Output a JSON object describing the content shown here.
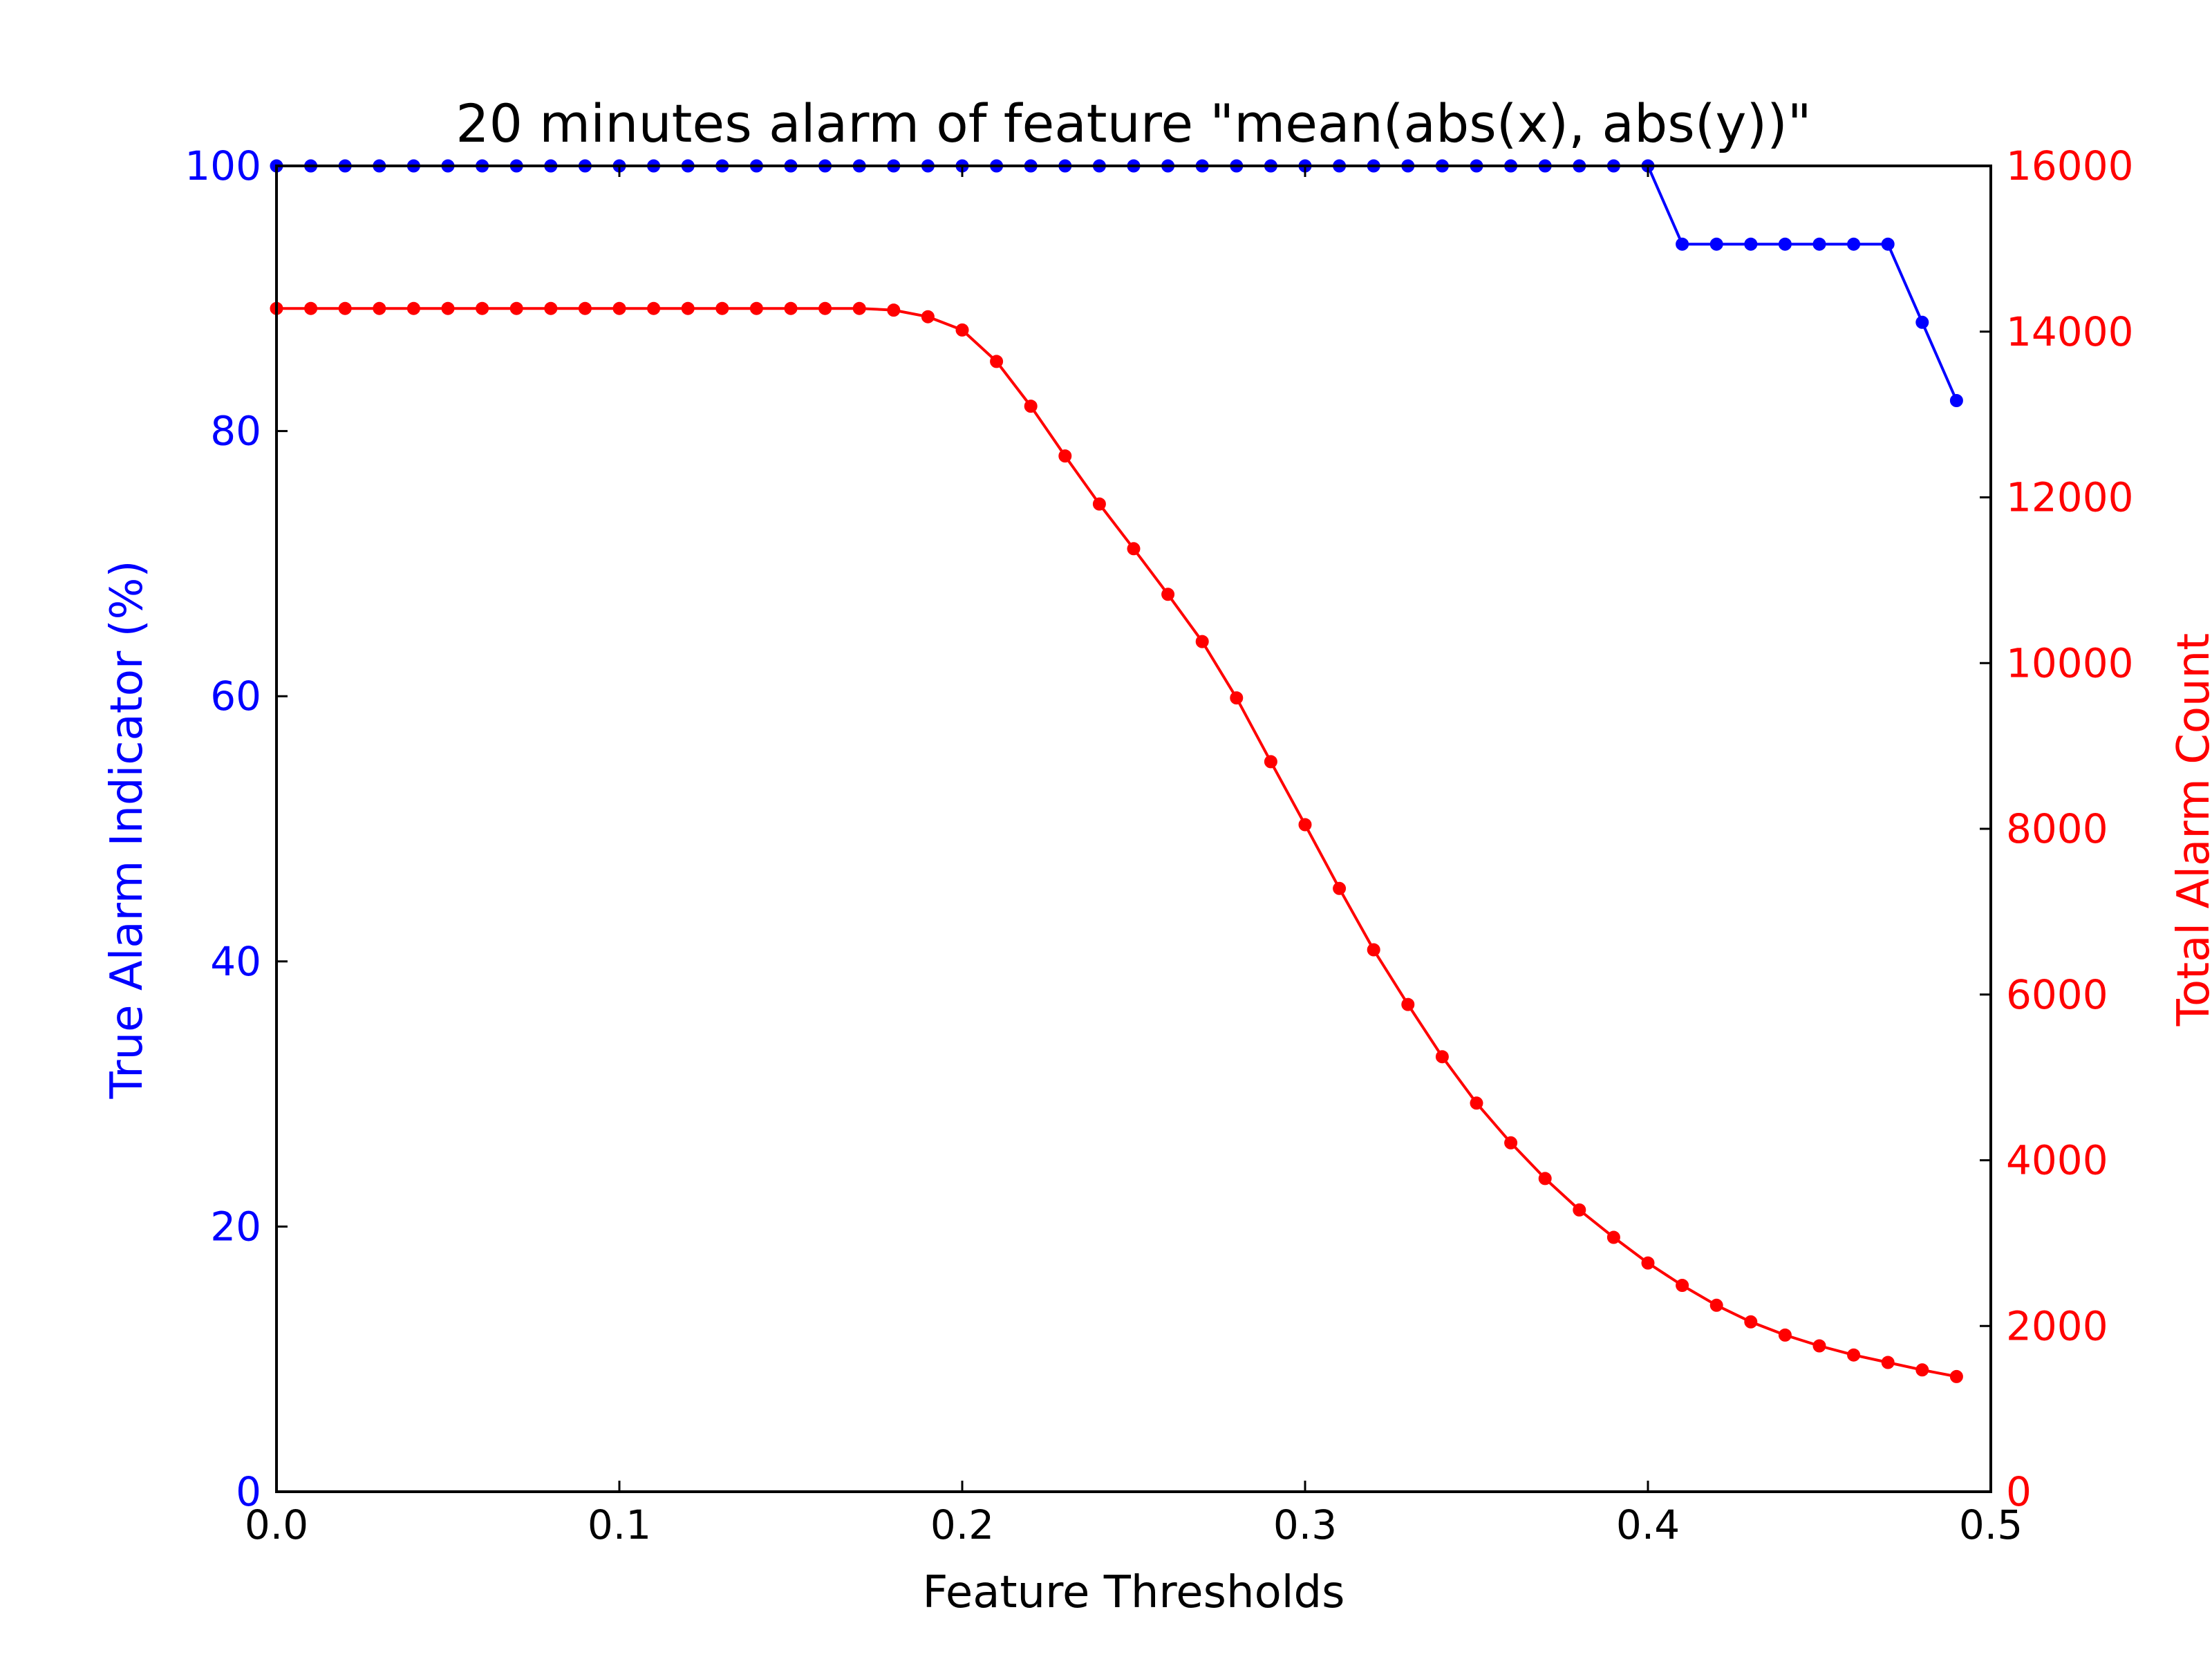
{
  "colors": {
    "left_axis": "#0000ff",
    "right_axis": "#ff0000",
    "frame": "#000000",
    "background": "#ffffff"
  },
  "chart_data": {
    "type": "line",
    "title": "20 minutes alarm of feature \"mean(abs(x), abs(y))\"",
    "xlabel": "Feature Thresholds",
    "ylabel_left": "True Alarm Indicator (%)",
    "ylabel_right": "Total Alarm Count",
    "xlim": [
      0,
      0.5
    ],
    "ylim_left": [
      0,
      100
    ],
    "ylim_right": [
      0,
      16000
    ],
    "x_ticks": [
      "0.0",
      "0.1",
      "0.2",
      "0.3",
      "0.4",
      "0.5"
    ],
    "y_ticks_left": [
      "0",
      "20",
      "40",
      "60",
      "80",
      "100"
    ],
    "y_ticks_right": [
      "0",
      "2000",
      "4000",
      "6000",
      "8000",
      "10000",
      "12000",
      "14000",
      "16000"
    ],
    "grid": false,
    "x": [
      0.0,
      0.01,
      0.02,
      0.03,
      0.04,
      0.05,
      0.06,
      0.07,
      0.08,
      0.09,
      0.1,
      0.11,
      0.12,
      0.13,
      0.14,
      0.15,
      0.16,
      0.17,
      0.18,
      0.19,
      0.2,
      0.21,
      0.22,
      0.23,
      0.24,
      0.25,
      0.26,
      0.27,
      0.28,
      0.29,
      0.3,
      0.31,
      0.32,
      0.33,
      0.34,
      0.35,
      0.36,
      0.37,
      0.38,
      0.39,
      0.4,
      0.41,
      0.42,
      0.43,
      0.44,
      0.45,
      0.46,
      0.47,
      0.48,
      0.49
    ],
    "series": [
      {
        "axis": "left",
        "color": "#0000ff",
        "values": [
          100,
          100,
          100,
          100,
          100,
          100,
          100,
          100,
          100,
          100,
          100,
          100,
          100,
          100,
          100,
          100,
          100,
          100,
          100,
          100,
          100,
          100,
          100,
          100,
          100,
          100,
          100,
          100,
          100,
          100,
          100,
          100,
          100,
          100,
          100,
          100,
          100,
          100,
          100,
          100,
          100,
          94.1,
          94.1,
          94.1,
          94.1,
          94.1,
          94.1,
          94.1,
          88.2,
          82.3
        ]
      },
      {
        "axis": "right",
        "color": "#ff0000",
        "values": [
          14280,
          14280,
          14280,
          14280,
          14280,
          14280,
          14280,
          14280,
          14280,
          14280,
          14280,
          14280,
          14280,
          14280,
          14280,
          14280,
          14280,
          14280,
          14260,
          14180,
          14020,
          13640,
          13100,
          12500,
          11920,
          11380,
          10830,
          10260,
          9580,
          8810,
          8050,
          7280,
          6540,
          5880,
          5250,
          4690,
          4210,
          3780,
          3400,
          3070,
          2760,
          2490,
          2250,
          2050,
          1890,
          1760,
          1650,
          1560,
          1470,
          1390
        ]
      }
    ]
  }
}
